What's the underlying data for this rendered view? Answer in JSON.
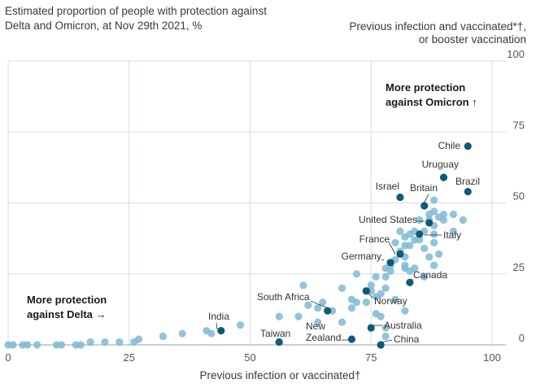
{
  "chart_data": {
    "type": "scatter",
    "title": "Estimated proportion of people with protection against Delta and Omicron, at Nov 29th 2021, %",
    "xlabel": "Previous infection or vaccinated†",
    "ylabel": "Previous infection and vaccinated*†, or booster vaccination",
    "xlim": [
      0,
      100
    ],
    "ylim": [
      0,
      100
    ],
    "x_ticks": [
      "0",
      "25",
      "50",
      "75",
      "100"
    ],
    "y_ticks": [
      "0",
      "25",
      "50",
      "75",
      "100"
    ],
    "grid": "vertical and horizontal lines",
    "annotations": {
      "omicron": [
        "More protection",
        "against Omicron ↑"
      ],
      "delta": [
        "More protection",
        "against Delta →"
      ]
    },
    "highlight_color": "#0f5a7a",
    "other_color": "#7fb8d3",
    "labeled_points": [
      {
        "name": "Chile",
        "x": 95,
        "y": 70
      },
      {
        "name": "Uruguay",
        "x": 90,
        "y": 59
      },
      {
        "name": "Brazil",
        "x": 95,
        "y": 54
      },
      {
        "name": "Israel",
        "x": 81,
        "y": 52
      },
      {
        "name": "Britain",
        "x": 86,
        "y": 49
      },
      {
        "name": "United States",
        "x": 87,
        "y": 43
      },
      {
        "name": "Italy",
        "x": 85,
        "y": 39
      },
      {
        "name": "France",
        "x": 81,
        "y": 32
      },
      {
        "name": "Germany",
        "x": 79,
        "y": 29
      },
      {
        "name": "Canada",
        "x": 83,
        "y": 22
      },
      {
        "name": "South Africa",
        "x": 66,
        "y": 12
      },
      {
        "name": "Norway",
        "x": 74,
        "y": 19
      },
      {
        "name": "India",
        "x": 44,
        "y": 5
      },
      {
        "name": "Australia",
        "x": 75,
        "y": 6
      },
      {
        "name": "Taiwan",
        "x": 56,
        "y": 1
      },
      {
        "name": "New Zealand",
        "x": 71,
        "y": 2
      },
      {
        "name": "China",
        "x": 77,
        "y": 0
      }
    ],
    "other_points": [
      [
        0,
        0
      ],
      [
        1,
        0
      ],
      [
        3,
        0
      ],
      [
        4,
        0
      ],
      [
        6,
        0
      ],
      [
        10,
        0
      ],
      [
        11,
        0
      ],
      [
        14,
        0
      ],
      [
        15,
        0
      ],
      [
        17,
        1
      ],
      [
        20,
        1
      ],
      [
        23,
        1
      ],
      [
        26,
        1
      ],
      [
        27,
        2
      ],
      [
        32,
        3
      ],
      [
        36,
        4
      ],
      [
        41,
        5
      ],
      [
        42,
        4
      ],
      [
        48,
        7
      ],
      [
        56,
        10
      ],
      [
        60,
        10
      ],
      [
        61,
        21
      ],
      [
        62,
        14
      ],
      [
        64,
        8
      ],
      [
        64,
        13
      ],
      [
        65,
        15
      ],
      [
        67,
        12
      ],
      [
        69,
        8
      ],
      [
        69,
        20
      ],
      [
        71,
        16
      ],
      [
        71,
        13
      ],
      [
        72,
        15
      ],
      [
        72,
        25
      ],
      [
        74,
        15
      ],
      [
        75,
        19
      ],
      [
        75,
        21
      ],
      [
        76,
        24
      ],
      [
        76,
        17
      ],
      [
        76,
        11
      ],
      [
        77,
        10
      ],
      [
        77,
        18
      ],
      [
        78,
        6
      ],
      [
        78,
        3
      ],
      [
        78,
        20
      ],
      [
        78,
        24
      ],
      [
        78,
        27
      ],
      [
        79,
        28
      ],
      [
        79,
        26
      ],
      [
        80,
        30
      ],
      [
        80,
        36
      ],
      [
        80,
        16
      ],
      [
        81,
        40
      ],
      [
        81,
        33
      ],
      [
        82,
        35
      ],
      [
        82,
        28
      ],
      [
        82,
        31
      ],
      [
        82,
        38
      ],
      [
        82,
        27
      ],
      [
        82,
        12
      ],
      [
        83,
        26
      ],
      [
        83,
        39
      ],
      [
        83,
        35
      ],
      [
        84,
        27
      ],
      [
        84,
        40
      ],
      [
        84,
        37
      ],
      [
        85,
        37
      ],
      [
        85,
        44
      ],
      [
        86,
        34
      ],
      [
        86,
        24
      ],
      [
        86,
        40
      ],
      [
        87,
        44
      ],
      [
        87,
        46
      ],
      [
        87,
        31
      ],
      [
        88,
        36
      ],
      [
        88,
        39
      ],
      [
        88,
        42
      ],
      [
        88,
        47
      ],
      [
        88,
        51
      ],
      [
        88,
        28
      ],
      [
        89,
        32
      ],
      [
        89,
        45
      ],
      [
        90,
        44
      ],
      [
        90,
        46
      ],
      [
        92,
        46
      ],
      [
        92,
        40
      ],
      [
        94,
        44
      ]
    ]
  }
}
